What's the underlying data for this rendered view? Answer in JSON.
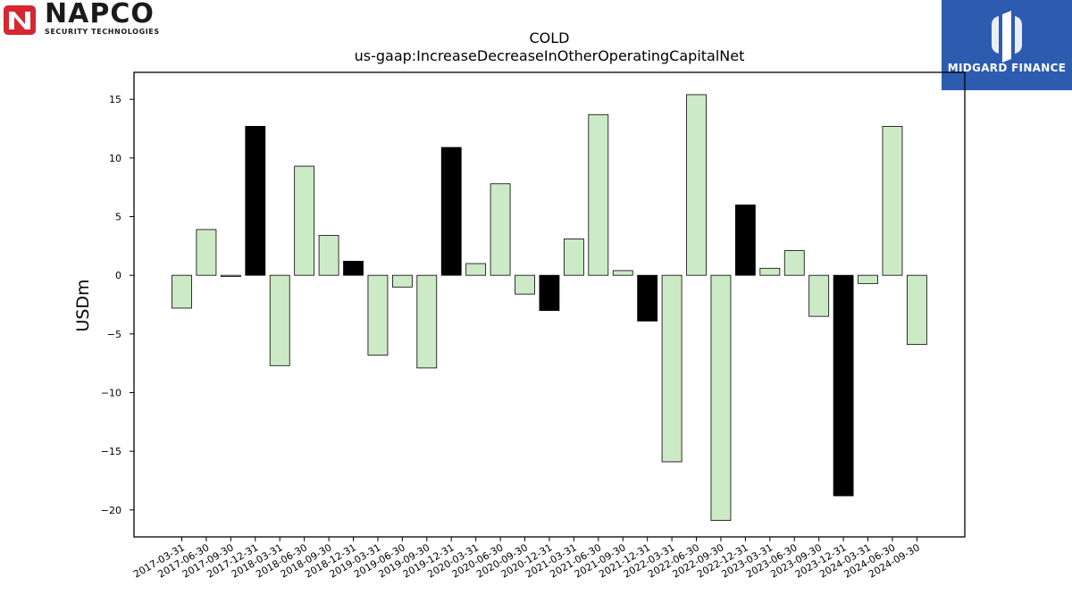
{
  "logos": {
    "left_brand": "NAPCO",
    "left_tagline": "SECURITY TECHNOLOGIES",
    "left_color": "#d6262f",
    "right_brand": "MIDGARD FINANCE",
    "right_color": "#2d5bb0"
  },
  "chart_data": {
    "type": "bar",
    "title": "COLD",
    "subtitle": "us-gaap:IncreaseDecreaseInOtherOperatingCapitalNet",
    "ylabel": "USDm",
    "xlabel": "",
    "ylim": [
      -22.3,
      17.3
    ],
    "yticks": [
      15,
      10,
      5,
      0,
      -5,
      -10,
      -15,
      -20
    ],
    "grid": false,
    "colors": {
      "Q1-Q3": "#cdeac6",
      "Q4": "#000000",
      "edge": "#000000"
    },
    "categories": [
      "2017-03-31",
      "2017-06-30",
      "2017-09-30",
      "2017-12-31",
      "2018-03-31",
      "2018-06-30",
      "2018-09-30",
      "2018-12-31",
      "2019-03-31",
      "2019-06-30",
      "2019-09-30",
      "2019-12-31",
      "2020-03-31",
      "2020-06-30",
      "2020-09-30",
      "2020-12-31",
      "2021-03-31",
      "2021-06-30",
      "2021-09-30",
      "2021-12-31",
      "2022-03-31",
      "2022-06-30",
      "2022-09-30",
      "2022-12-31",
      "2023-03-31",
      "2023-06-30",
      "2023-09-30",
      "2023-12-31",
      "2024-03-31",
      "2024-06-30",
      "2024-09-30"
    ],
    "values": [
      -2.8,
      3.9,
      -0.1,
      12.7,
      -7.7,
      9.3,
      3.4,
      1.2,
      -6.8,
      -1.0,
      -7.9,
      10.9,
      1.0,
      7.8,
      -1.6,
      -3.0,
      3.1,
      13.7,
      0.4,
      -3.9,
      -15.9,
      15.4,
      -20.9,
      6.0,
      0.6,
      2.1,
      -3.5,
      -18.8,
      -0.7,
      12.7,
      -5.9
    ]
  }
}
